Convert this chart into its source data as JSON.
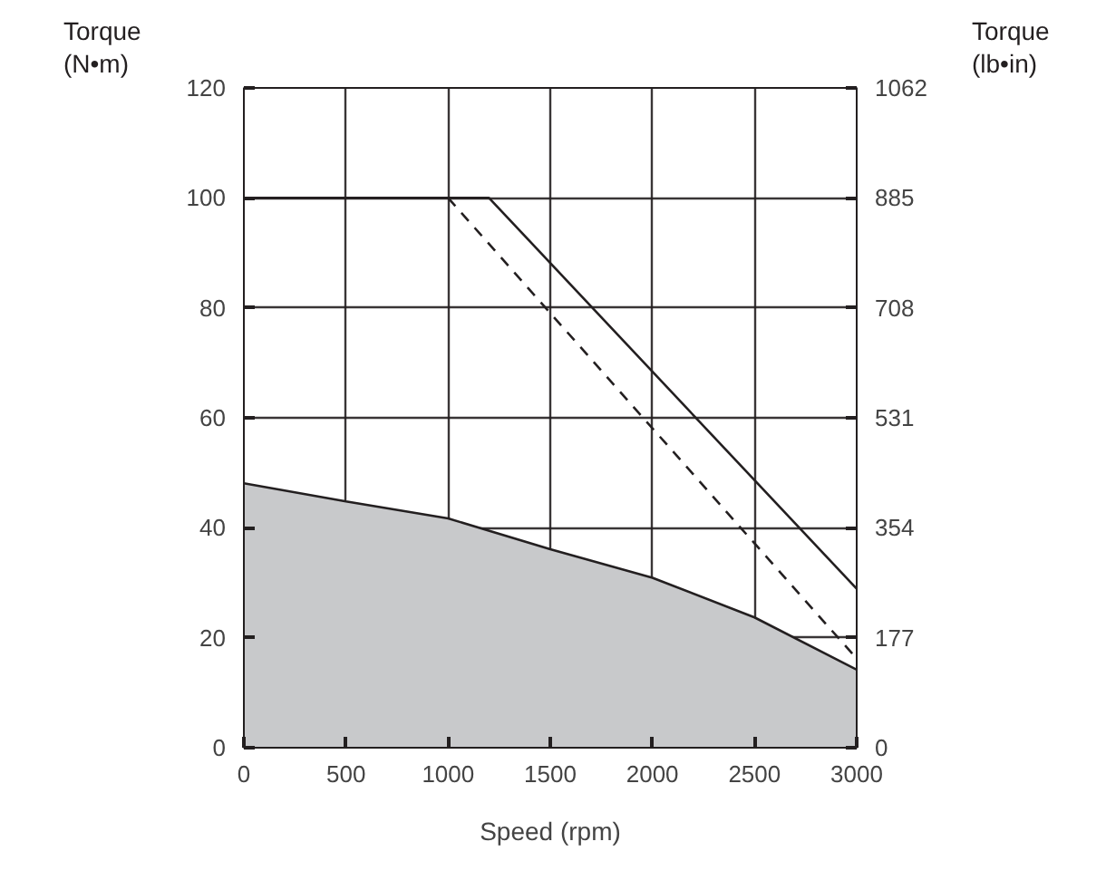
{
  "chart_data": {
    "type": "line",
    "xlabel": "Speed (rpm)",
    "ylabel": "Torque\n(N•m)",
    "y2label": "Torque\n(lb•in)",
    "xlim": [
      0,
      3000
    ],
    "xticks": [
      0,
      500,
      1000,
      1500,
      2000,
      2500,
      3000
    ],
    "ylim": [
      0,
      120
    ],
    "yticks": [
      0,
      20,
      40,
      60,
      80,
      100,
      120
    ],
    "y2lim": [
      0,
      1062
    ],
    "y2ticks": [
      0,
      177,
      354,
      531,
      708,
      885,
      1062
    ],
    "grid": true,
    "series": [
      {
        "type": "area",
        "color": "#c8c9cb",
        "x": [
          0,
          500,
          1000,
          1500,
          2000,
          2500,
          3000
        ],
        "values": [
          48.1,
          44.8,
          41.7,
          36.1,
          30.9,
          23.7,
          14.2
        ]
      },
      {
        "color": "#231f20",
        "line_style": "solid",
        "x": [
          0,
          1200,
          3000
        ],
        "values": [
          100,
          100,
          28.9
        ]
      },
      {
        "color": "#231f20",
        "line_style": "dashed",
        "x": [
          1000,
          3000
        ],
        "values": [
          100,
          16.2
        ]
      }
    ]
  }
}
